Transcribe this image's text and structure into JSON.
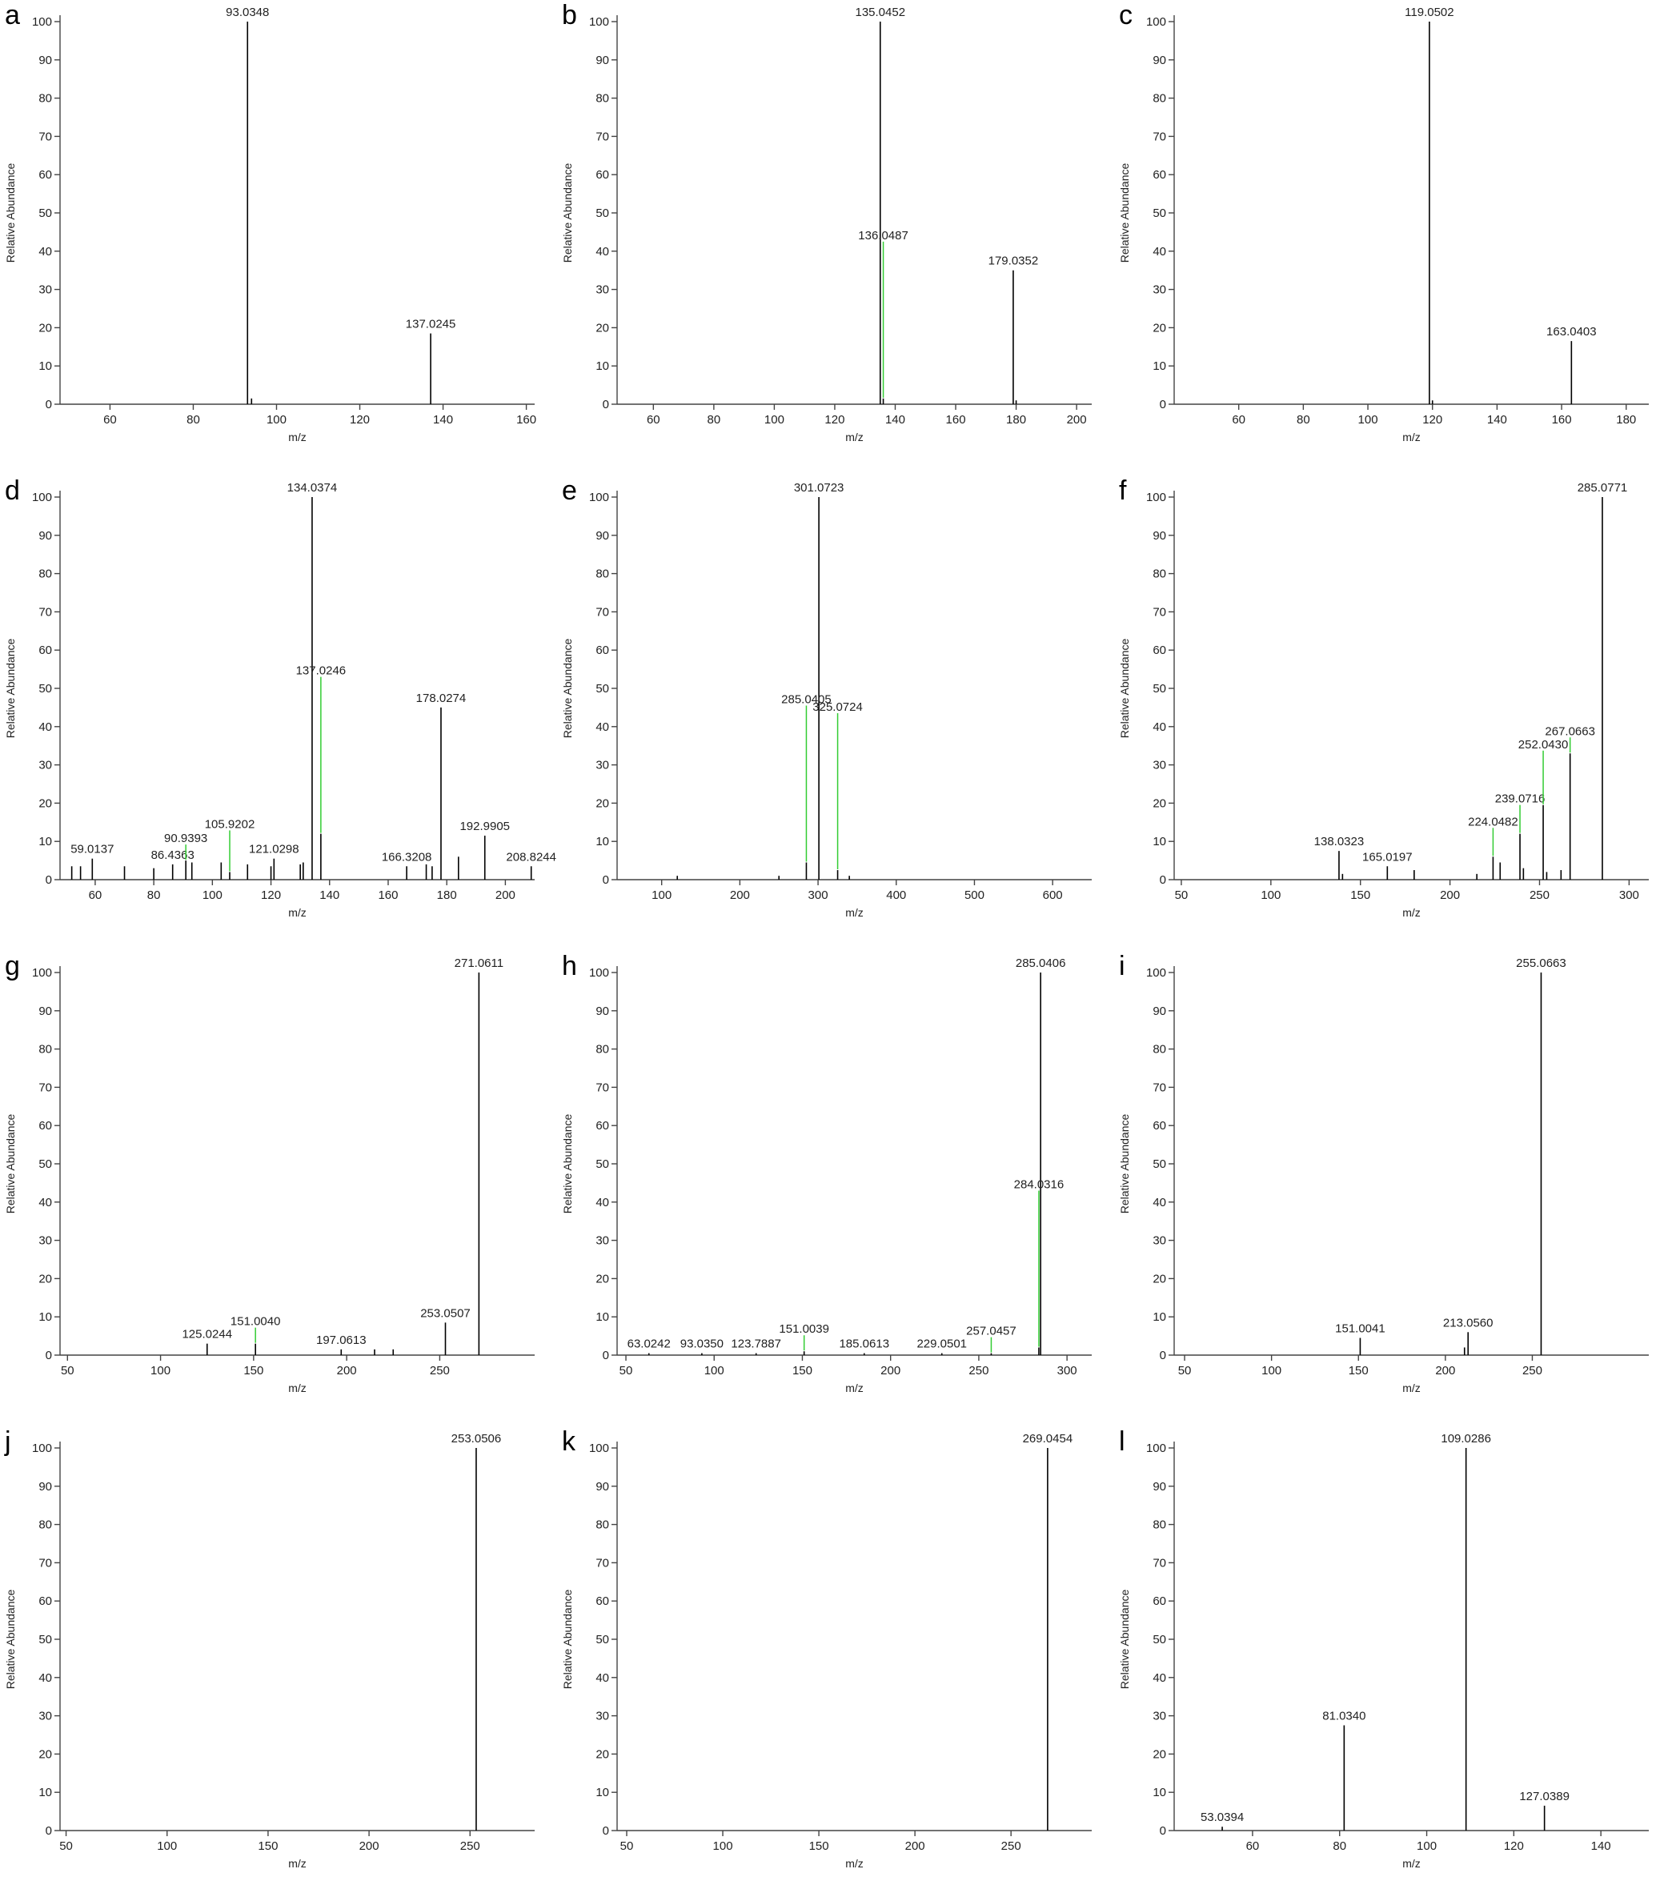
{
  "chart_data": [
    {
      "type": "stem",
      "panel": "a",
      "xlabel": "m/z",
      "ylabel": "Relative Abundance",
      "xlim": [
        48,
        162
      ],
      "ylim": [
        0,
        100
      ],
      "xticks": [
        60,
        80,
        100,
        120,
        140,
        160
      ],
      "yticks": [
        0,
        10,
        20,
        30,
        40,
        50,
        60,
        70,
        80,
        90,
        100
      ],
      "color": "#000000",
      "x": [
        93.0348,
        94,
        137.0245
      ],
      "values": [
        100,
        1.5,
        18.5
      ],
      "peak_labels": [
        "93.0348",
        null,
        "137.0245"
      ]
    },
    {
      "type": "stem",
      "panel": "b",
      "xlabel": "m/z",
      "ylabel": "Relative Abundance",
      "xlim": [
        48,
        205
      ],
      "ylim": [
        0,
        100
      ],
      "xticks": [
        60,
        80,
        100,
        120,
        140,
        160,
        180,
        200
      ],
      "yticks": [
        0,
        10,
        20,
        30,
        40,
        50,
        60,
        70,
        80,
        90,
        100
      ],
      "color": "#000000",
      "x": [
        135.0452,
        136.0487,
        179.0352,
        180
      ],
      "values": [
        100,
        1.5,
        35,
        1
      ],
      "peak_labels": [
        "135.0452",
        "136.0487",
        "179.0352",
        null
      ]
    },
    {
      "type": "stem",
      "panel": "c",
      "xlabel": "m/z",
      "ylabel": "Relative Abundance",
      "xlim": [
        40,
        187
      ],
      "ylim": [
        0,
        100
      ],
      "xticks": [
        60,
        80,
        100,
        120,
        140,
        160,
        180
      ],
      "yticks": [
        0,
        10,
        20,
        30,
        40,
        50,
        60,
        70,
        80,
        90,
        100
      ],
      "color": "#000000",
      "x": [
        119.0502,
        120,
        163.0403
      ],
      "values": [
        100,
        1,
        16.5
      ],
      "peak_labels": [
        "119.0502",
        null,
        "163.0403"
      ]
    },
    {
      "type": "stem",
      "panel": "d",
      "xlabel": "m/z",
      "ylabel": "Relative Abundance",
      "xlim": [
        48,
        210
      ],
      "ylim": [
        0,
        100
      ],
      "xticks": [
        60,
        80,
        100,
        120,
        140,
        160,
        180,
        200
      ],
      "yticks": [
        0,
        10,
        20,
        30,
        40,
        50,
        60,
        70,
        80,
        90,
        100
      ],
      "color": "#000000",
      "x": [
        52,
        55,
        59.0137,
        70,
        80,
        86.4363,
        90.9393,
        93,
        103,
        105.9202,
        112,
        120,
        121.0298,
        130,
        131,
        134.0374,
        137.0246,
        166.3208,
        173,
        175,
        178.0274,
        184,
        192.9905,
        208.8244
      ],
      "values": [
        3.5,
        3.5,
        5.5,
        3.5,
        3,
        4,
        5,
        4.5,
        4.5,
        2,
        4,
        3.5,
        5.5,
        4,
        4.5,
        100,
        12,
        3.5,
        4,
        3.5,
        45,
        6,
        11.5,
        3.5
      ],
      "peak_labels": [
        null,
        null,
        "59.0137",
        null,
        null,
        "86.4363",
        "90.9393",
        null,
        null,
        "105.9202",
        null,
        null,
        "121.0298",
        null,
        null,
        "134.0374",
        "137.0246",
        "166.3208",
        null,
        null,
        "178.0274",
        null,
        "192.9905",
        "208.8244"
      ]
    },
    {
      "type": "stem",
      "panel": "e",
      "xlabel": "m/z",
      "ylabel": "Relative Abundance",
      "xlim": [
        43,
        650
      ],
      "ylim": [
        0,
        100
      ],
      "xticks": [
        100,
        200,
        300,
        400,
        500,
        600
      ],
      "yticks": [
        0,
        10,
        20,
        30,
        40,
        50,
        60,
        70,
        80,
        90,
        100
      ],
      "color": "#000000",
      "x": [
        120,
        250,
        285.0405,
        301.0723,
        325.0724,
        340
      ],
      "values": [
        1,
        1,
        4.5,
        100,
        2.5,
        1
      ],
      "peak_labels": [
        null,
        null,
        "285.0405",
        "301.0723",
        "325.0724",
        null
      ]
    },
    {
      "type": "stem",
      "panel": "f",
      "xlabel": "m/z",
      "ylabel": "Relative Abundance",
      "xlim": [
        46,
        311
      ],
      "ylim": [
        0,
        100
      ],
      "xticks": [
        50,
        100,
        150,
        200,
        250,
        300
      ],
      "yticks": [
        0,
        10,
        20,
        30,
        40,
        50,
        60,
        70,
        80,
        90,
        100
      ],
      "color": "#000000",
      "x": [
        138.0323,
        140,
        165.0197,
        180,
        215,
        224.0482,
        228,
        239.0716,
        241,
        252.043,
        254,
        262,
        267.0663,
        285.0771
      ],
      "values": [
        7.5,
        1.5,
        3.5,
        2.5,
        1.5,
        6,
        4.5,
        12,
        3,
        19.5,
        2,
        2.5,
        33,
        100
      ],
      "peak_labels": [
        "138.0323",
        null,
        "165.0197",
        null,
        null,
        "224.0482",
        null,
        "239.0716",
        null,
        "252.0430",
        null,
        null,
        "267.0663",
        "285.0771"
      ]
    },
    {
      "type": "stem",
      "panel": "g",
      "xlabel": "m/z",
      "ylabel": "Relative Abundance",
      "xlim": [
        46,
        301
      ],
      "ylim": [
        0,
        100
      ],
      "xticks": [
        50,
        100,
        150,
        200,
        250
      ],
      "yticks": [
        0,
        10,
        20,
        30,
        40,
        50,
        60,
        70,
        80,
        90,
        100
      ],
      "color": "#000000",
      "x": [
        125.0244,
        151.004,
        197.0613,
        215,
        225,
        253.0507,
        271.0611
      ],
      "values": [
        3,
        3,
        1.5,
        1.5,
        1.5,
        8.5,
        100
      ],
      "peak_labels": [
        "125.0244",
        "151.0040",
        "197.0613",
        null,
        null,
        "253.0507",
        "271.0611"
      ]
    },
    {
      "type": "stem",
      "panel": "h",
      "xlabel": "m/z",
      "ylabel": "Relative Abundance",
      "xlim": [
        45,
        314
      ],
      "ylim": [
        0,
        100
      ],
      "xticks": [
        50,
        100,
        150,
        200,
        250,
        300
      ],
      "yticks": [
        0,
        10,
        20,
        30,
        40,
        50,
        60,
        70,
        80,
        90,
        100
      ],
      "color": "#000000",
      "x": [
        63.0242,
        93.035,
        123.7887,
        151.0039,
        185.0613,
        229.0501,
        257.0457,
        284.0316,
        285.0406
      ],
      "values": [
        0.5,
        0.5,
        0.5,
        1,
        0.5,
        0.5,
        0.5,
        2,
        100
      ],
      "peak_labels": [
        "63.0242",
        "93.0350",
        "123.7887",
        "151.0039",
        "185.0613",
        "229.0501",
        "257.0457",
        "284.0316",
        "285.0406"
      ]
    },
    {
      "type": "stem",
      "panel": "i",
      "xlabel": "m/z",
      "ylabel": "Relative Abundance",
      "xlim": [
        44,
        317
      ],
      "ylim": [
        0,
        100
      ],
      "xticks": [
        50,
        100,
        150,
        200,
        250
      ],
      "yticks": [
        0,
        10,
        20,
        30,
        40,
        50,
        60,
        70,
        80,
        90,
        100
      ],
      "color": "#000000",
      "x": [
        151.0041,
        211,
        213.056,
        255.0663
      ],
      "values": [
        4.5,
        2,
        6,
        100
      ],
      "peak_labels": [
        "151.0041",
        null,
        "213.0560",
        "255.0663"
      ]
    },
    {
      "type": "stem",
      "panel": "j",
      "xlabel": "m/z",
      "ylabel": "Relative Abundance",
      "xlim": [
        47,
        282
      ],
      "ylim": [
        0,
        100
      ],
      "xticks": [
        50,
        100,
        150,
        200,
        250
      ],
      "yticks": [
        0,
        10,
        20,
        30,
        40,
        50,
        60,
        70,
        80,
        90,
        100
      ],
      "color": "#000000",
      "x": [
        253.0506
      ],
      "values": [
        100
      ],
      "peak_labels": [
        "253.0506"
      ]
    },
    {
      "type": "stem",
      "panel": "k",
      "xlabel": "m/z",
      "ylabel": "Relative Abundance",
      "xlim": [
        45,
        292
      ],
      "ylim": [
        0,
        100
      ],
      "xticks": [
        50,
        100,
        150,
        200,
        250
      ],
      "yticks": [
        0,
        10,
        20,
        30,
        40,
        50,
        60,
        70,
        80,
        90,
        100
      ],
      "color": "#000000",
      "x": [
        269.0454
      ],
      "values": [
        100
      ],
      "peak_labels": [
        "269.0454"
      ]
    },
    {
      "type": "stem",
      "panel": "l",
      "xlabel": "m/z",
      "ylabel": "Relative Abundance",
      "xlim": [
        42,
        151
      ],
      "ylim": [
        0,
        100
      ],
      "xticks": [
        60,
        80,
        100,
        120,
        140
      ],
      "yticks": [
        0,
        10,
        20,
        30,
        40,
        50,
        60,
        70,
        80,
        90,
        100
      ],
      "color": "#000000",
      "x": [
        53.0394,
        81.034,
        109.0286,
        127.0389
      ],
      "values": [
        1,
        27.5,
        100,
        6.5
      ],
      "peak_labels": [
        "53.0394",
        "81.0340",
        "109.0286",
        "127.0389"
      ]
    }
  ]
}
